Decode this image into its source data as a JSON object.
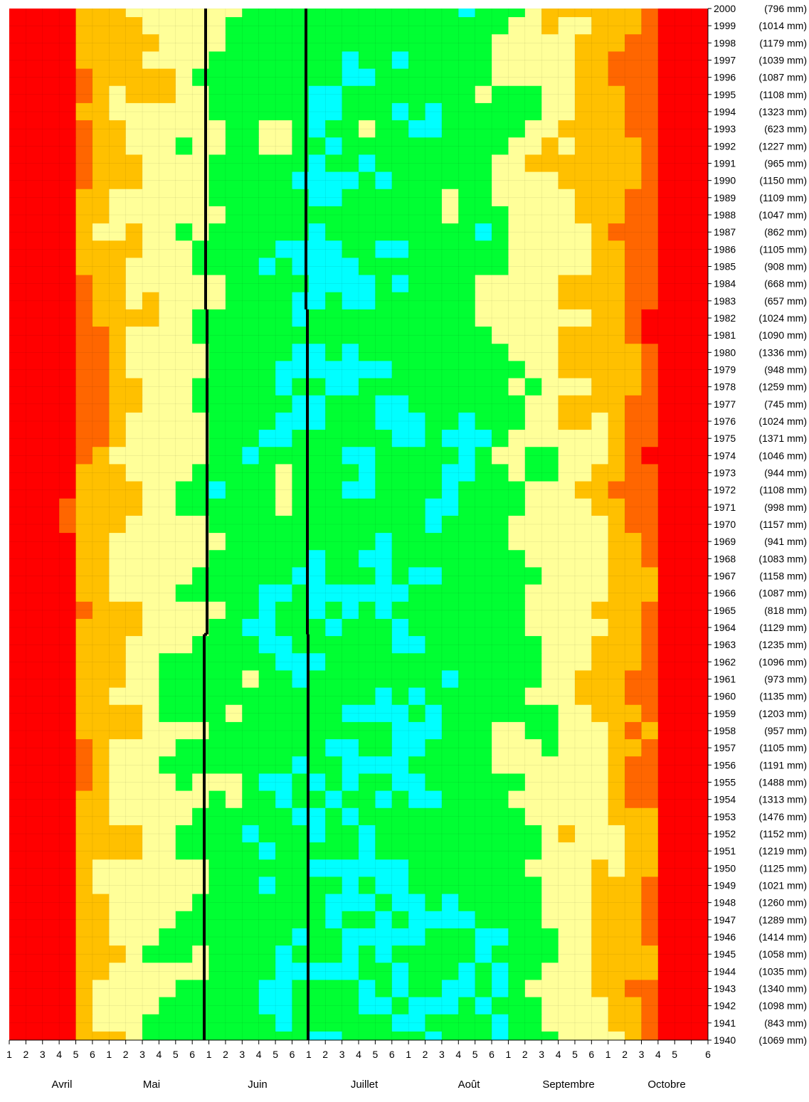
{
  "chart_data": {
    "type": "heatmap",
    "title": "",
    "xlabel": "",
    "ylabel": "",
    "x_minor_labels": [
      "1",
      "2",
      "3",
      "4",
      "5",
      "6"
    ],
    "months": [
      "Avril",
      "Mai",
      "Juin",
      "Juillet",
      "Août",
      "Septembre",
      "Octobre"
    ],
    "years": [
      {
        "year": "2000",
        "rain": "(796 mm)"
      },
      {
        "year": "1999",
        "rain": "(1014 mm)"
      },
      {
        "year": "1998",
        "rain": "(1179 mm)"
      },
      {
        "year": "1997",
        "rain": "(1039 mm)"
      },
      {
        "year": "1996",
        "rain": "(1087 mm)"
      },
      {
        "year": "1995",
        "rain": "(1108 mm)"
      },
      {
        "year": "1994",
        "rain": "(1323 mm)"
      },
      {
        "year": "1993",
        "rain": "(623 mm)"
      },
      {
        "year": "1992",
        "rain": "(1227 mm)"
      },
      {
        "year": "1991",
        "rain": "(965 mm)"
      },
      {
        "year": "1990",
        "rain": "(1150 mm)"
      },
      {
        "year": "1989",
        "rain": "(1109 mm)"
      },
      {
        "year": "1988",
        "rain": "(1047 mm)"
      },
      {
        "year": "1987",
        "rain": "(862 mm)"
      },
      {
        "year": "1986",
        "rain": "(1105 mm)"
      },
      {
        "year": "1985",
        "rain": "(908 mm)"
      },
      {
        "year": "1984",
        "rain": "(668 mm)"
      },
      {
        "year": "1983",
        "rain": "(657 mm)"
      },
      {
        "year": "1982",
        "rain": "(1024 mm)"
      },
      {
        "year": "1981",
        "rain": "(1090 mm)"
      },
      {
        "year": "1980",
        "rain": "(1336 mm)"
      },
      {
        "year": "1979",
        "rain": "(948 mm)"
      },
      {
        "year": "1978",
        "rain": "(1259 mm)"
      },
      {
        "year": "1977",
        "rain": "(745 mm)"
      },
      {
        "year": "1976",
        "rain": "(1024 mm)"
      },
      {
        "year": "1975",
        "rain": "(1371 mm)"
      },
      {
        "year": "1974",
        "rain": "(1046 mm)"
      },
      {
        "year": "1973",
        "rain": "(944 mm)"
      },
      {
        "year": "1972",
        "rain": "(1108 mm)"
      },
      {
        "year": "1971",
        "rain": "(998 mm)"
      },
      {
        "year": "1970",
        "rain": "(1157 mm)"
      },
      {
        "year": "1969",
        "rain": "(941 mm)"
      },
      {
        "year": "1968",
        "rain": "(1083 mm)"
      },
      {
        "year": "1967",
        "rain": "(1158 mm)"
      },
      {
        "year": "1966",
        "rain": "(1087 mm)"
      },
      {
        "year": "1965",
        "rain": "(818 mm)"
      },
      {
        "year": "1964",
        "rain": "(1129 mm)"
      },
      {
        "year": "1963",
        "rain": "(1235 mm)"
      },
      {
        "year": "1962",
        "rain": "(1096 mm)"
      },
      {
        "year": "1961",
        "rain": "(973 mm)"
      },
      {
        "year": "1960",
        "rain": "(1135 mm)"
      },
      {
        "year": "1959",
        "rain": "(1203 mm)"
      },
      {
        "year": "1958",
        "rain": "(957 mm)"
      },
      {
        "year": "1957",
        "rain": "(1105 mm)"
      },
      {
        "year": "1956",
        "rain": "(1191 mm)"
      },
      {
        "year": "1955",
        "rain": "(1488 mm)"
      },
      {
        "year": "1954",
        "rain": "(1313 mm)"
      },
      {
        "year": "1953",
        "rain": "(1476 mm)"
      },
      {
        "year": "1952",
        "rain": "(1152 mm)"
      },
      {
        "year": "1951",
        "rain": "(1219 mm)"
      },
      {
        "year": "1950",
        "rain": "(1125 mm)"
      },
      {
        "year": "1949",
        "rain": "(1021 mm)"
      },
      {
        "year": "1948",
        "rain": "(1260 mm)"
      },
      {
        "year": "1947",
        "rain": "(1289 mm)"
      },
      {
        "year": "1946",
        "rain": "(1414 mm)"
      },
      {
        "year": "1945",
        "rain": "(1058 mm)"
      },
      {
        "year": "1944",
        "rain": "(1035 mm)"
      },
      {
        "year": "1943",
        "rain": "(1340 mm)"
      },
      {
        "year": "1942",
        "rain": "(1098 mm)"
      },
      {
        "year": "1941",
        "rain": "(843 mm)"
      },
      {
        "year": "1940",
        "rain": "(1069 mm)"
      }
    ],
    "color_scale": [
      "#ff0000",
      "#ff6600",
      "#ffc000",
      "#ffff99",
      "#00ff33",
      "#00ffff",
      "#0000ff"
    ],
    "grid_lines": true,
    "vertical_markers": [
      {
        "segment": "1983-2000",
        "positions": [
          "Juin 1",
          "Juillet 1"
        ]
      },
      {
        "segment": "1964-1982",
        "positions": [
          "Juin 1",
          "Juillet 1"
        ]
      },
      {
        "segment": "1940-1963",
        "positions": [
          "Juin 1",
          "Juillet 1"
        ]
      }
    ]
  }
}
